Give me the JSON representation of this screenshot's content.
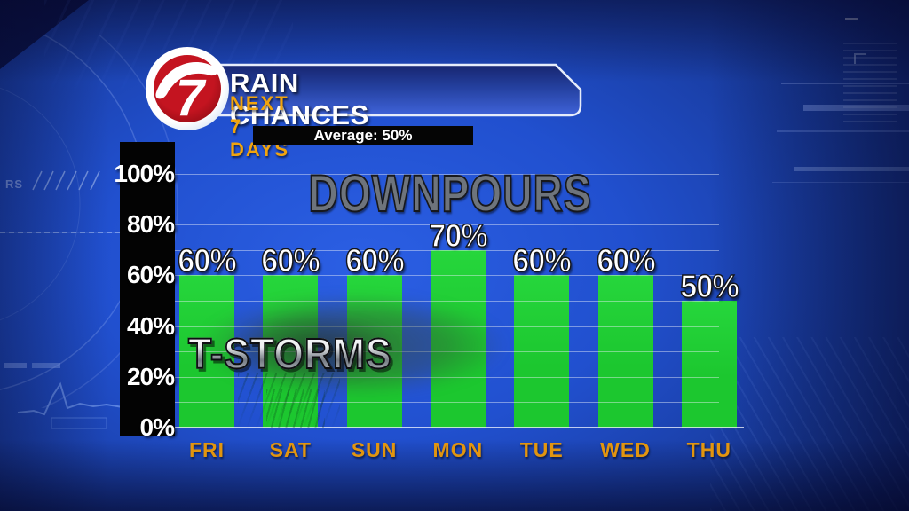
{
  "header": {
    "station_logo": "7",
    "title": "RAIN CHANCES",
    "subtitle": "NEXT 7 DAYS",
    "average_label": "Average: 50%"
  },
  "chart_data": {
    "type": "bar",
    "title": "RAIN CHANCES",
    "subtitle": "NEXT 7 DAYS",
    "categories": [
      "FRI",
      "SAT",
      "SUN",
      "MON",
      "TUE",
      "WED",
      "THU"
    ],
    "values": [
      60,
      60,
      60,
      70,
      60,
      60,
      50
    ],
    "value_labels": [
      "60%",
      "60%",
      "60%",
      "70%",
      "60%",
      "60%",
      "50%"
    ],
    "average_value": 50,
    "y_tick_labels": [
      "0%",
      "20%",
      "40%",
      "60%",
      "80%",
      "100%"
    ],
    "ylim": [
      0,
      100
    ],
    "y_tick_step": 20,
    "grid_step": 10,
    "grid_on": true,
    "annotations": [
      "DOWNPOURS",
      "T-STORMS"
    ],
    "bar_color": "#1cc72f",
    "bar_color_top": "#26d63c",
    "day_label_color": "#e2950f",
    "axis_panel_color": "#030303",
    "value_label_color": "#ffffff"
  },
  "annotations": {
    "downpours": "DOWNPOURS",
    "tstorms": "T-STORMS"
  },
  "background_decor": {
    "rs_text": "RS"
  },
  "colors": {
    "background_center": "#2b5fe4",
    "background_edge": "#0a1450",
    "header_accent": "#f2a40c",
    "logo_red": "#b61319"
  }
}
